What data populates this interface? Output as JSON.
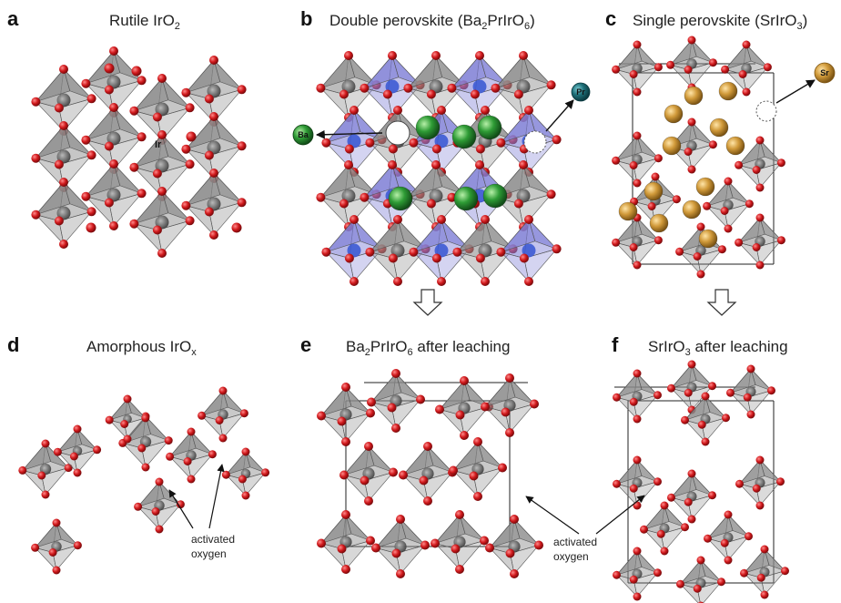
{
  "panels": [
    {
      "letter": "a",
      "title_main": "Rutile IrO",
      "title_sub": "2",
      "title_tail": ""
    },
    {
      "letter": "b",
      "title_main": "Double perovskite (Ba",
      "title_sub": "2",
      "title_tail": "PrIrO",
      "title_sub2": "6",
      "title_end": ")"
    },
    {
      "letter": "c",
      "title_main": "Single perovskite (SrIrO",
      "title_sub": "3",
      "title_tail": ")"
    },
    {
      "letter": "d",
      "title_main": "Amorphous IrO",
      "title_sub": "x",
      "title_tail": ""
    },
    {
      "letter": "e",
      "title_main": "Ba",
      "title_sub": "2",
      "title_tail": "PrIrO",
      "title_sub2": "6",
      "title_end": " after leaching"
    },
    {
      "letter": "f",
      "title_main": "SrIrO",
      "title_sub": "3",
      "title_tail": " after leaching"
    }
  ],
  "labels": {
    "ir": "Ir",
    "ba": "Ba",
    "pr": "Pr",
    "sr": "Sr",
    "activated_oxygen_line1": "activated",
    "activated_oxygen_line2": "oxygen"
  },
  "colors": {
    "oxygen": "#d0191c",
    "ir_octahedron": "#8c8c8c",
    "pr_octahedron": "#7f7fd6",
    "ba": "#2e9b35",
    "pr": "#1d6f78",
    "sr": "#d19a3a"
  }
}
